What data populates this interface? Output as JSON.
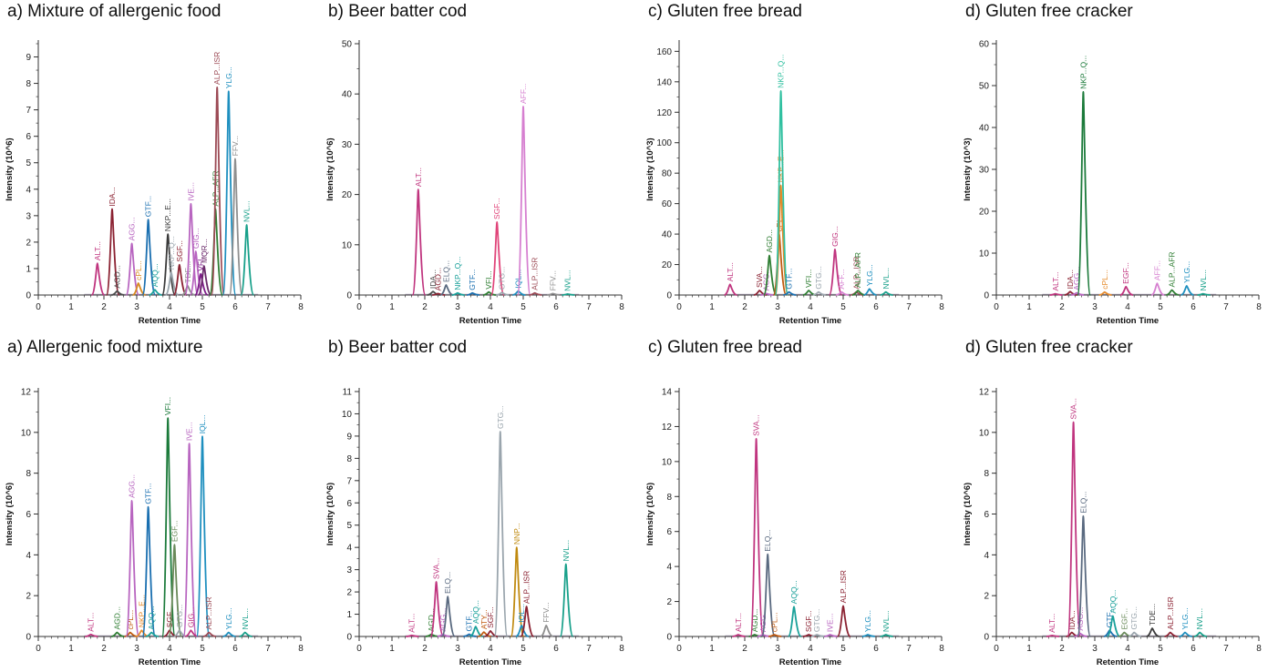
{
  "chart_data": [
    {
      "id": "r1c1",
      "type": "line",
      "title": "a) Mixture of allergenic food",
      "xlabel": "Retention Time",
      "ylabel": "Intensity (10^6)",
      "xlim": [
        0,
        8
      ],
      "ylim": [
        0,
        9.5
      ],
      "xticks": [
        0,
        1,
        2,
        3,
        4,
        5,
        6,
        7,
        8
      ],
      "yticks": [
        0,
        1,
        2,
        3,
        4,
        5,
        6,
        7,
        8,
        9
      ],
      "peaks": [
        {
          "label": "ALT...",
          "rt": 1.8,
          "h": 1.2,
          "color": "#c0357f"
        },
        {
          "label": "IDA...",
          "rt": 2.25,
          "h": 3.25,
          "color": "#8b2232"
        },
        {
          "label": "AGD...",
          "rt": 2.4,
          "h": 0.15,
          "color": "#4a4a4a"
        },
        {
          "label": "AGG...",
          "rt": 2.85,
          "h": 1.95,
          "color": "#b865c0"
        },
        {
          "label": "cPL...",
          "rt": 3.05,
          "h": 0.45,
          "color": "#d88a20"
        },
        {
          "label": "GTF...",
          "rt": 3.35,
          "h": 2.85,
          "color": "#1a6fb0"
        },
        {
          "label": "AQQ...",
          "rt": 3.55,
          "h": 0.2,
          "color": "#1aa19a"
        },
        {
          "label": "NKP...E...",
          "rt": 3.95,
          "h": 2.3,
          "color": "#3a3a3a"
        },
        {
          "label": "NKP...Q...",
          "rt": 4.05,
          "h": 0.85,
          "color": "#9aa5ad"
        },
        {
          "label": "SGF...",
          "rt": 4.3,
          "h": 1.15,
          "color": "#8b2232"
        },
        {
          "label": "TDE...",
          "rt": 4.55,
          "h": 0.35,
          "color": "#8f8f8f"
        },
        {
          "label": "IVE...",
          "rt": 4.65,
          "h": 3.45,
          "color": "#b865c0"
        },
        {
          "label": "GIG...",
          "rt": 4.8,
          "h": 1.65,
          "color": "#b865c0"
        },
        {
          "label": "VFI...",
          "rt": 4.95,
          "h": 0.8,
          "color": "#7e1c8a"
        },
        {
          "label": "MQR...",
          "rt": 5.05,
          "h": 1.1,
          "color": "#6a2a6a"
        },
        {
          "label": "ALP...AFR",
          "rt": 5.4,
          "h": 3.25,
          "color": "#2e7d32"
        },
        {
          "label": "ALP...ISR",
          "rt": 5.45,
          "h": 7.85,
          "color": "#9c4a55"
        },
        {
          "label": "YLG...",
          "rt": 5.8,
          "h": 7.7,
          "color": "#1e8fbf"
        },
        {
          "label": "FFV...",
          "rt": 6.0,
          "h": 5.15,
          "color": "#8f8f8f"
        },
        {
          "label": "NVL...",
          "rt": 6.35,
          "h": 2.65,
          "color": "#18a08a"
        }
      ]
    },
    {
      "id": "r1c2",
      "type": "line",
      "title": "b) Beer batter cod",
      "xlabel": "Retention Time",
      "ylabel": "Intensity (10^6)",
      "xlim": [
        0,
        8
      ],
      "ylim": [
        0,
        50
      ],
      "xticks": [
        0,
        1,
        2,
        3,
        4,
        5,
        6,
        7,
        8
      ],
      "yticks": [
        0,
        10,
        20,
        30,
        40,
        50
      ],
      "peaks": [
        {
          "label": "ALT...",
          "rt": 1.8,
          "h": 21.0,
          "color": "#c0357f"
        },
        {
          "label": "IDA...",
          "rt": 2.25,
          "h": 0.7,
          "color": "#4a4a4a"
        },
        {
          "label": "AGD...",
          "rt": 2.4,
          "h": 0.3,
          "color": "#8b2232"
        },
        {
          "label": "ELQ...",
          "rt": 2.65,
          "h": 2.0,
          "color": "#5a6a80"
        },
        {
          "label": "NKP...Q...",
          "rt": 3.0,
          "h": 0.4,
          "color": "#1aa19a"
        },
        {
          "label": "GTF...",
          "rt": 3.45,
          "h": 0.4,
          "color": "#1a6fb0"
        },
        {
          "label": "VFI...",
          "rt": 3.95,
          "h": 0.6,
          "color": "#2e7d32"
        },
        {
          "label": "SGF...",
          "rt": 4.2,
          "h": 14.5,
          "color": "#e0457a"
        },
        {
          "label": "GTG...",
          "rt": 4.35,
          "h": 0.5,
          "color": "#9aa5ad"
        },
        {
          "label": "IQL...",
          "rt": 4.85,
          "h": 0.8,
          "color": "#1e8fbf"
        },
        {
          "label": "AFF...",
          "rt": 5.0,
          "h": 37.5,
          "color": "#d67fd0"
        },
        {
          "label": "ALP...ISR",
          "rt": 5.35,
          "h": 0.4,
          "color": "#9c4a55"
        },
        {
          "label": "FFV...",
          "rt": 5.9,
          "h": 0.3,
          "color": "#8f8f8f"
        },
        {
          "label": "NVL...",
          "rt": 6.35,
          "h": 0.2,
          "color": "#18a08a"
        }
      ]
    },
    {
      "id": "r1c3",
      "type": "line",
      "title": "c) Gluten free bread",
      "xlabel": "Retention Time",
      "ylabel": "Intensity (10^3)",
      "xlim": [
        0,
        8
      ],
      "ylim": [
        0,
        165
      ],
      "xticks": [
        0,
        1,
        2,
        3,
        4,
        5,
        6,
        7,
        8
      ],
      "yticks": [
        0,
        20,
        40,
        60,
        80,
        100,
        120,
        140,
        160
      ],
      "peaks": [
        {
          "label": "ALT...",
          "rt": 1.55,
          "h": 7,
          "color": "#c0357f"
        },
        {
          "label": "SVA...",
          "rt": 2.45,
          "h": 3,
          "color": "#8b2232"
        },
        {
          "label": "AGG...",
          "rt": 2.65,
          "h": 1,
          "color": "#b865c0"
        },
        {
          "label": "AGD...",
          "rt": 2.75,
          "h": 26,
          "color": "#2e7d32"
        },
        {
          "label": "cPL...",
          "rt": 3.05,
          "h": 40,
          "color": "#c05a10"
        },
        {
          "label": "NKP...E...",
          "rt": 3.1,
          "h": 72,
          "color": "#e58a2a"
        },
        {
          "label": "NKP...Q...",
          "rt": 3.1,
          "h": 134,
          "color": "#30c0a0"
        },
        {
          "label": "GTF...",
          "rt": 3.35,
          "h": 2,
          "color": "#1a6fb0"
        },
        {
          "label": "VFI...",
          "rt": 3.95,
          "h": 3,
          "color": "#2e7d32"
        },
        {
          "label": "GTG...",
          "rt": 4.25,
          "h": 2,
          "color": "#9aa5ad"
        },
        {
          "label": "GIG...",
          "rt": 4.75,
          "h": 30,
          "color": "#c0357f"
        },
        {
          "label": "AFF...",
          "rt": 4.95,
          "h": 2,
          "color": "#d67fd0"
        },
        {
          "label": "ALP...ISR",
          "rt": 5.4,
          "h": 2,
          "color": "#9c4a55"
        },
        {
          "label": "ALP...AFR",
          "rt": 5.45,
          "h": 3,
          "color": "#2e7d32"
        },
        {
          "label": "YLG...",
          "rt": 5.8,
          "h": 4,
          "color": "#1e8fbf"
        },
        {
          "label": "NVL...",
          "rt": 6.3,
          "h": 2,
          "color": "#18a08a"
        }
      ]
    },
    {
      "id": "r1c4",
      "type": "line",
      "title": "d) Gluten free cracker",
      "xlabel": "Retention Time",
      "ylabel": "Intensity (10^3)",
      "xlim": [
        0,
        8
      ],
      "ylim": [
        0,
        60
      ],
      "xticks": [
        0,
        1,
        2,
        3,
        4,
        5,
        6,
        7,
        8
      ],
      "yticks": [
        0,
        10,
        20,
        30,
        40,
        50,
        60
      ],
      "peaks": [
        {
          "label": "ALT...",
          "rt": 1.8,
          "h": 0.3,
          "color": "#c0357f"
        },
        {
          "label": "IDA...",
          "rt": 2.25,
          "h": 0.8,
          "color": "#8b2232"
        },
        {
          "label": "AGG...",
          "rt": 2.45,
          "h": 0.5,
          "color": "#b865c0"
        },
        {
          "label": "NKP...Q...",
          "rt": 2.65,
          "h": 48.5,
          "color": "#1b7a3a"
        },
        {
          "label": "cPL...",
          "rt": 3.3,
          "h": 0.7,
          "color": "#e58a2a"
        },
        {
          "label": "EGF...",
          "rt": 3.95,
          "h": 2.0,
          "color": "#c0357f"
        },
        {
          "label": "AFF...",
          "rt": 4.9,
          "h": 2.8,
          "color": "#d67fd0"
        },
        {
          "label": "ALP...AFR",
          "rt": 5.35,
          "h": 1.2,
          "color": "#2e7d32"
        },
        {
          "label": "YLG...",
          "rt": 5.8,
          "h": 2.2,
          "color": "#1e8fbf"
        },
        {
          "label": "NVL...",
          "rt": 6.3,
          "h": 0.3,
          "color": "#18a08a"
        }
      ]
    },
    {
      "id": "r2c1",
      "type": "line",
      "title": "a) Allergenic food mixture",
      "xlabel": "Retention Time",
      "ylabel": "Intensity (10^6)",
      "xlim": [
        0,
        8
      ],
      "ylim": [
        0,
        12
      ],
      "xticks": [
        0,
        1,
        2,
        3,
        4,
        5,
        6,
        7,
        8
      ],
      "yticks": [
        0,
        2,
        4,
        6,
        8,
        10,
        12
      ],
      "peaks": [
        {
          "label": "ALT...",
          "rt": 1.6,
          "h": 0.1,
          "color": "#c0357f"
        },
        {
          "label": "AGD...",
          "rt": 2.4,
          "h": 0.2,
          "color": "#2e7d32"
        },
        {
          "label": "cPL...",
          "rt": 2.8,
          "h": 0.2,
          "color": "#c05a10"
        },
        {
          "label": "AGG...",
          "rt": 2.85,
          "h": 6.65,
          "color": "#b865c0"
        },
        {
          "label": "NKP...E...",
          "rt": 3.15,
          "h": 0.3,
          "color": "#e58a2a"
        },
        {
          "label": "GTF...",
          "rt": 3.35,
          "h": 6.35,
          "color": "#1a6fb0"
        },
        {
          "label": "AQQ...",
          "rt": 3.45,
          "h": 0.2,
          "color": "#1aa19a"
        },
        {
          "label": "VFI...",
          "rt": 3.95,
          "h": 10.7,
          "color": "#1b7a3a"
        },
        {
          "label": "SGF...",
          "rt": 4.0,
          "h": 0.3,
          "color": "#8b2232"
        },
        {
          "label": "EGF...",
          "rt": 4.15,
          "h": 4.5,
          "color": "#6a8a5a"
        },
        {
          "label": "GTG...",
          "rt": 4.3,
          "h": 0.3,
          "color": "#9aa5ad"
        },
        {
          "label": "IVE...",
          "rt": 4.6,
          "h": 9.45,
          "color": "#b865c0"
        },
        {
          "label": "GIG...",
          "rt": 4.65,
          "h": 0.3,
          "color": "#c0357f"
        },
        {
          "label": "IQL...",
          "rt": 5.0,
          "h": 9.8,
          "color": "#1e8fbf"
        },
        {
          "label": "ALP...ISR",
          "rt": 5.2,
          "h": 0.2,
          "color": "#9c4a55"
        },
        {
          "label": "YLG...",
          "rt": 5.8,
          "h": 0.2,
          "color": "#1e8fbf"
        },
        {
          "label": "NVL...",
          "rt": 6.3,
          "h": 0.2,
          "color": "#18a08a"
        }
      ]
    },
    {
      "id": "r2c2",
      "type": "line",
      "title": "b) Beer batter cod",
      "xlabel": "Retention Time",
      "ylabel": "Intensity (10^6)",
      "xlim": [
        0,
        8
      ],
      "ylim": [
        0,
        11
      ],
      "xticks": [
        0,
        1,
        2,
        3,
        4,
        5,
        6,
        7,
        8
      ],
      "yticks": [
        0,
        1,
        2,
        3,
        4,
        5,
        6,
        7,
        8,
        9,
        10,
        11
      ],
      "peaks": [
        {
          "label": "ALT...",
          "rt": 1.6,
          "h": 0.05,
          "color": "#c0357f"
        },
        {
          "label": "AGD...",
          "rt": 2.2,
          "h": 0.1,
          "color": "#2e7d32"
        },
        {
          "label": "SVA...",
          "rt": 2.35,
          "h": 2.45,
          "color": "#c0357f"
        },
        {
          "label": "AGG...",
          "rt": 2.55,
          "h": 0.1,
          "color": "#b865c0"
        },
        {
          "label": "ELQ...",
          "rt": 2.7,
          "h": 1.8,
          "color": "#5a6a80"
        },
        {
          "label": "GTF...",
          "rt": 3.35,
          "h": 0.1,
          "color": "#1a6fb0"
        },
        {
          "label": "AQQ...",
          "rt": 3.55,
          "h": 0.45,
          "color": "#1aa19a"
        },
        {
          "label": "ATY...",
          "rt": 3.8,
          "h": 0.2,
          "color": "#c05a10"
        },
        {
          "label": "SGF...",
          "rt": 4.0,
          "h": 0.25,
          "color": "#8b2232"
        },
        {
          "label": "GTG...",
          "rt": 4.3,
          "h": 9.2,
          "color": "#9aa5ad"
        },
        {
          "label": "NNP...",
          "rt": 4.8,
          "h": 4.0,
          "color": "#c08a10"
        },
        {
          "label": "IQL...",
          "rt": 4.95,
          "h": 0.5,
          "color": "#1e8fbf"
        },
        {
          "label": "ALP...ISR",
          "rt": 5.1,
          "h": 1.35,
          "color": "#8b2232"
        },
        {
          "label": "FFV...",
          "rt": 5.7,
          "h": 0.5,
          "color": "#8f8f8f"
        },
        {
          "label": "NVL...",
          "rt": 6.3,
          "h": 3.25,
          "color": "#18a08a"
        }
      ]
    },
    {
      "id": "r2c3",
      "type": "line",
      "title": "c) Gluten free bread",
      "xlabel": "Retention Time",
      "ylabel": "Intensity (10^6)",
      "xlim": [
        0,
        8
      ],
      "ylim": [
        0,
        14
      ],
      "xticks": [
        0,
        1,
        2,
        3,
        4,
        5,
        6,
        7,
        8
      ],
      "yticks": [
        0,
        2,
        4,
        6,
        8,
        10,
        12,
        14
      ],
      "peaks": [
        {
          "label": "ALT...",
          "rt": 1.8,
          "h": 0.1,
          "color": "#c0357f"
        },
        {
          "label": "AGD...",
          "rt": 2.3,
          "h": 0.1,
          "color": "#2e7d32"
        },
        {
          "label": "SVA...",
          "rt": 2.35,
          "h": 11.3,
          "color": "#c0357f"
        },
        {
          "label": "AGG...",
          "rt": 2.55,
          "h": 0.1,
          "color": "#b865c0"
        },
        {
          "label": "ELQ...",
          "rt": 2.7,
          "h": 4.7,
          "color": "#5a6a80"
        },
        {
          "label": "cPL...",
          "rt": 2.9,
          "h": 0.1,
          "color": "#c05a10"
        },
        {
          "label": "AQQ...",
          "rt": 3.5,
          "h": 1.7,
          "color": "#1aa19a"
        },
        {
          "label": "SGF...",
          "rt": 3.95,
          "h": 0.1,
          "color": "#8b2232"
        },
        {
          "label": "GTG...",
          "rt": 4.2,
          "h": 0.1,
          "color": "#9aa5ad"
        },
        {
          "label": "IVE...",
          "rt": 4.6,
          "h": 0.1,
          "color": "#b865c0"
        },
        {
          "label": "ALP...ISR",
          "rt": 5.0,
          "h": 1.75,
          "color": "#8b2232"
        },
        {
          "label": "YLG...",
          "rt": 5.75,
          "h": 0.1,
          "color": "#1e8fbf"
        },
        {
          "label": "NVL...",
          "rt": 6.3,
          "h": 0.1,
          "color": "#18a08a"
        }
      ]
    },
    {
      "id": "r2c4",
      "type": "line",
      "title": "d) Gluten free cracker",
      "xlabel": "Retention Time",
      "ylabel": "Intensity (10^6)",
      "xlim": [
        0,
        8
      ],
      "ylim": [
        0,
        12
      ],
      "xticks": [
        0,
        1,
        2,
        3,
        4,
        5,
        6,
        7,
        8
      ],
      "yticks": [
        0,
        2,
        4,
        6,
        8,
        10,
        12
      ],
      "peaks": [
        {
          "label": "ALT...",
          "rt": 1.7,
          "h": 0.05,
          "color": "#c0357f"
        },
        {
          "label": "IDA...",
          "rt": 2.3,
          "h": 0.2,
          "color": "#8b2232"
        },
        {
          "label": "SVA...",
          "rt": 2.35,
          "h": 10.5,
          "color": "#c0357f"
        },
        {
          "label": "AGG...",
          "rt": 2.55,
          "h": 0.15,
          "color": "#b865c0"
        },
        {
          "label": "ELQ...",
          "rt": 2.65,
          "h": 5.9,
          "color": "#5a6a80"
        },
        {
          "label": "GTF...",
          "rt": 3.45,
          "h": 0.3,
          "color": "#1a6fb0"
        },
        {
          "label": "AQQ...",
          "rt": 3.55,
          "h": 1.0,
          "color": "#1aa19a"
        },
        {
          "label": "EGF...",
          "rt": 3.9,
          "h": 0.2,
          "color": "#6a8a5a"
        },
        {
          "label": "GTG...",
          "rt": 4.2,
          "h": 0.2,
          "color": "#9aa5ad"
        },
        {
          "label": "TDE...",
          "rt": 4.75,
          "h": 0.4,
          "color": "#3a3a3a"
        },
        {
          "label": "ALP...ISR",
          "rt": 5.3,
          "h": 0.2,
          "color": "#8b2232"
        },
        {
          "label": "YLG...",
          "rt": 5.75,
          "h": 0.2,
          "color": "#1e8fbf"
        },
        {
          "label": "NVL...",
          "rt": 6.2,
          "h": 0.2,
          "color": "#18a08a"
        }
      ]
    }
  ]
}
